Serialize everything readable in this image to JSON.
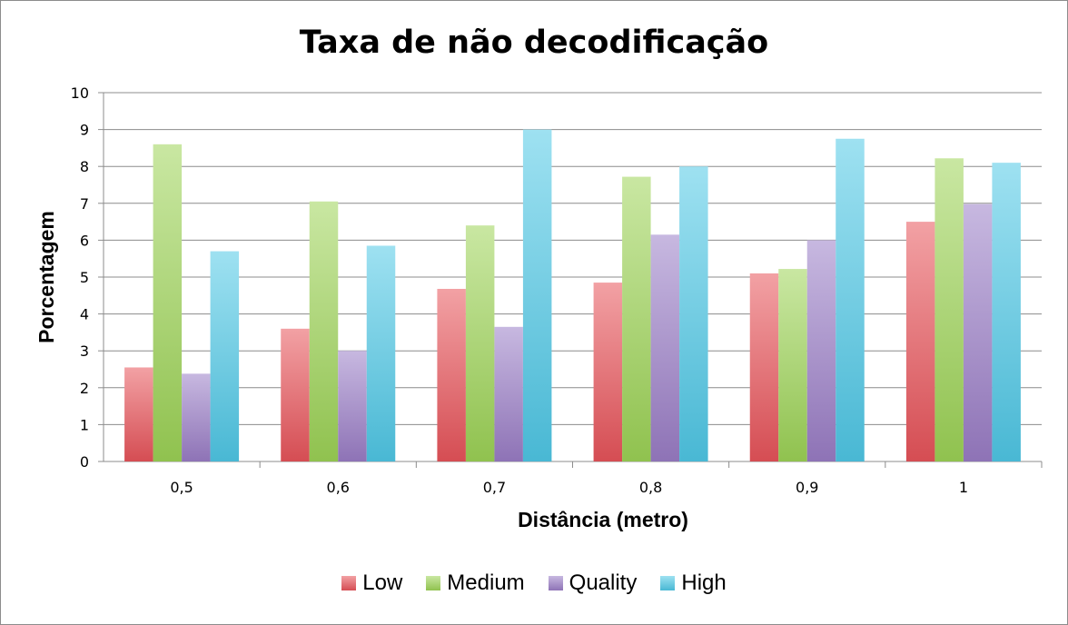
{
  "chart_data": {
    "type": "bar",
    "title": "Taxa de não decodificação",
    "xlabel": "Distância (metro)",
    "ylabel": "Porcentagem",
    "categories": [
      "0,5",
      "0,6",
      "0,7",
      "0,8",
      "0,9",
      "1"
    ],
    "ylim": [
      0,
      10
    ],
    "yticks": [
      "0",
      "1",
      "2",
      "3",
      "4",
      "5",
      "6",
      "7",
      "8",
      "9",
      "10"
    ],
    "grid": true,
    "legend_position": "bottom",
    "series": [
      {
        "name": "Low",
        "color": "#e8545a",
        "values": [
          2.55,
          3.6,
          4.68,
          4.85,
          5.1,
          6.5
        ]
      },
      {
        "name": "Medium",
        "color": "#9cd356",
        "values": [
          8.6,
          7.05,
          6.4,
          7.72,
          5.22,
          8.22
        ]
      },
      {
        "name": "Quality",
        "color": "#9a7dc6",
        "values": [
          2.38,
          3.0,
          3.65,
          6.15,
          6.0,
          6.98
        ]
      },
      {
        "name": "High",
        "color": "#4fc8e6",
        "values": [
          5.7,
          5.85,
          9.0,
          8.0,
          8.75,
          8.1
        ]
      }
    ]
  }
}
